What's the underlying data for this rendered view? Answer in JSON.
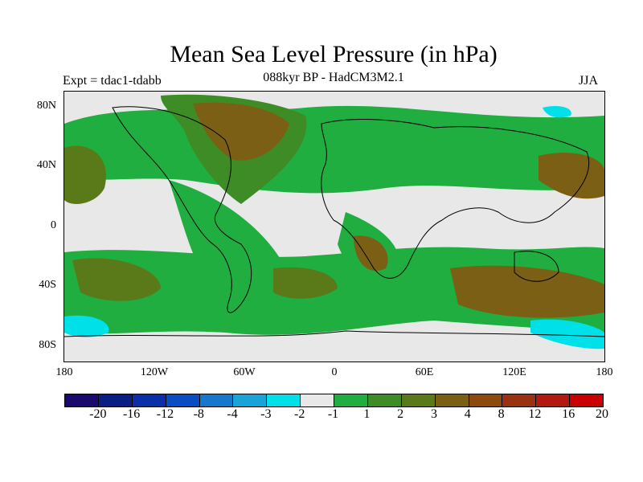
{
  "title": "Mean Sea Level Pressure (in hPa)",
  "experiment": "Expt = tdac1-tdabb",
  "subtitle": "088kyr BP - HadCM3M2.1",
  "season": "JJA",
  "map": {
    "lat_labels": [
      "80N",
      "40N",
      "0",
      "40S",
      "80S"
    ],
    "lon_labels": [
      "180",
      "120W",
      "60W",
      "0",
      "60E",
      "120E",
      "180"
    ]
  },
  "legend": {
    "colors": [
      "#1a0a6e",
      "#0a1f85",
      "#0a2fa8",
      "#0a4cc2",
      "#1578cc",
      "#1aa3d6",
      "#00e0e8",
      "#e8e8e8",
      "#1fae3f",
      "#3d8c25",
      "#5a7a1a",
      "#7a5f15",
      "#8c4a10",
      "#9a3212",
      "#b21a10",
      "#c80000"
    ],
    "labels": [
      "-20",
      "-16",
      "-12",
      "-8",
      "-4",
      "-3",
      "-2",
      "-1",
      "1",
      "2",
      "3",
      "4",
      "8",
      "12",
      "16",
      "20"
    ]
  }
}
